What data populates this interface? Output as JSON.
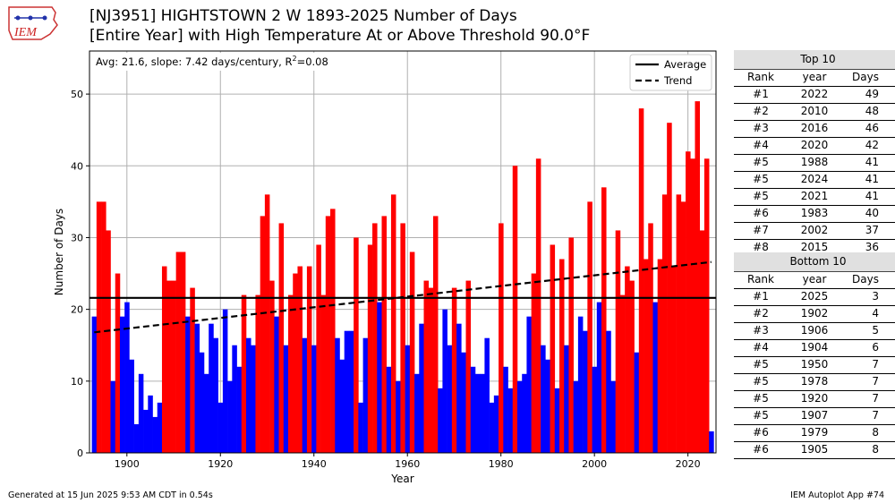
{
  "header": {
    "title_line1": "[NJ3951] HIGHTSTOWN 2 W 1893-2025 Number of Days",
    "title_line2": "[Entire Year] with High Temperature At or Above Threshold 90.0°F",
    "logo_text": "IEM"
  },
  "stats": {
    "text": "Avg: 21.6, slope: 7.42 days/century, R",
    "sup": "2",
    "suffix": "=0.08"
  },
  "legend": {
    "average": "Average",
    "trend": "Trend"
  },
  "footer": {
    "left": "Generated at 15 Jun 2025 9:53 AM CDT in 0.54s",
    "right": "IEM Autoplot App #74"
  },
  "top10": {
    "title": "Top 10",
    "headers": [
      "Rank",
      "year",
      "Days"
    ],
    "rows": [
      [
        "#1",
        "2022",
        "49"
      ],
      [
        "#2",
        "2010",
        "48"
      ],
      [
        "#3",
        "2016",
        "46"
      ],
      [
        "#4",
        "2020",
        "42"
      ],
      [
        "#5",
        "1988",
        "41"
      ],
      [
        "#5",
        "2024",
        "41"
      ],
      [
        "#5",
        "2021",
        "41"
      ],
      [
        "#6",
        "1983",
        "40"
      ],
      [
        "#7",
        "2002",
        "37"
      ],
      [
        "#8",
        "2015",
        "36"
      ]
    ]
  },
  "bottom10": {
    "title": "Bottom 10",
    "headers": [
      "Rank",
      "year",
      "Days"
    ],
    "rows": [
      [
        "#1",
        "2025",
        "3"
      ],
      [
        "#2",
        "1902",
        "4"
      ],
      [
        "#3",
        "1906",
        "5"
      ],
      [
        "#4",
        "1904",
        "6"
      ],
      [
        "#5",
        "1950",
        "7"
      ],
      [
        "#5",
        "1978",
        "7"
      ],
      [
        "#5",
        "1920",
        "7"
      ],
      [
        "#5",
        "1907",
        "7"
      ],
      [
        "#6",
        "1979",
        "8"
      ],
      [
        "#6",
        "1905",
        "8"
      ]
    ]
  },
  "chart_data": {
    "type": "bar",
    "xlabel": "Year",
    "ylabel": "Number of Days",
    "xlim": [
      1892,
      2026
    ],
    "ylim": [
      0,
      56
    ],
    "xticks": [
      1900,
      1920,
      1940,
      1960,
      1980,
      2000,
      2020
    ],
    "yticks": [
      0,
      10,
      20,
      30,
      40,
      50
    ],
    "grid": true,
    "legend_position": "top-right",
    "start_year": 1893,
    "values": [
      19,
      35,
      35,
      31,
      10,
      25,
      19,
      21,
      13,
      4,
      11,
      6,
      8,
      5,
      7,
      26,
      24,
      24,
      28,
      28,
      19,
      23,
      18,
      14,
      11,
      18,
      16,
      7,
      20,
      10,
      15,
      12,
      22,
      16,
      15,
      22,
      33,
      36,
      24,
      19,
      32,
      15,
      22,
      25,
      26,
      16,
      26,
      15,
      29,
      22,
      33,
      34,
      16,
      13,
      17,
      17,
      30,
      7,
      16,
      29,
      32,
      21,
      33,
      12,
      36,
      10,
      32,
      15,
      28,
      11,
      18,
      24,
      23,
      33,
      9,
      20,
      15,
      23,
      18,
      14,
      24,
      12,
      11,
      11,
      16,
      7,
      8,
      32,
      12,
      9,
      40,
      10,
      11,
      19,
      25,
      41,
      15,
      13,
      29,
      9,
      27,
      15,
      30,
      10,
      19,
      17,
      35,
      12,
      21,
      37,
      17,
      10,
      31,
      22,
      26,
      24,
      14,
      48,
      27,
      32,
      21,
      27,
      36,
      46,
      26,
      36,
      35,
      42,
      41,
      49,
      31,
      41,
      3
    ],
    "average": 21.6,
    "trend": {
      "start": [
        1893,
        16.8
      ],
      "end": [
        2025,
        26.6
      ]
    },
    "colors": {
      "above": "#ff0000",
      "below": "#0000ff",
      "average": "#000000",
      "trend": "#000000"
    }
  }
}
